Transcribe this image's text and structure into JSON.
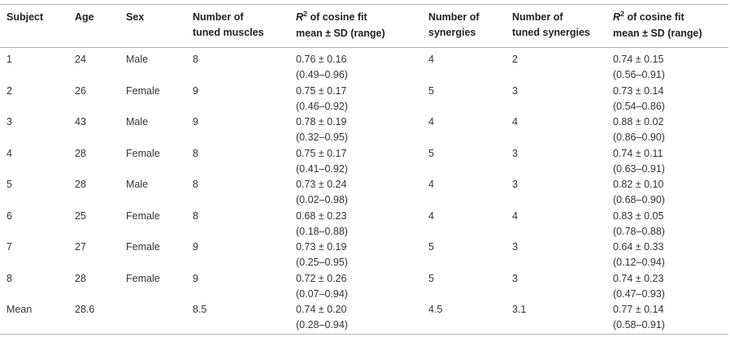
{
  "headers": {
    "subject": "Subject",
    "age": "Age",
    "sex": "Sex",
    "tuned_muscles": [
      "Number of",
      "tuned muscles"
    ],
    "r2_muscles": {
      "symbol": "R",
      "sup": "2",
      "rest": " of cosine fit",
      "line2": "mean ± SD (range)"
    },
    "synergies": [
      "Number of",
      "synergies"
    ],
    "tuned_synergies": [
      "Number of",
      "tuned synergies"
    ],
    "r2_synergies": {
      "symbol": "R",
      "sup": "2",
      "rest": " of cosine fit",
      "line2": "mean ± SD (range)"
    }
  },
  "rows": [
    {
      "subject": "1",
      "age": "24",
      "sex": "Male",
      "tuned_muscles": "8",
      "r2_muscles": "0.76 ± 0.16",
      "r2_muscles_range": "(0.49–0.96)",
      "synergies": "4",
      "tuned_synergies": "2",
      "r2_synergies": "0.74 ± 0.15",
      "r2_synergies_range": "(0.56–0.91)"
    },
    {
      "subject": "2",
      "age": "26",
      "sex": "Female",
      "tuned_muscles": "9",
      "r2_muscles": "0.75 ± 0.17",
      "r2_muscles_range": "(0.46–0.92)",
      "synergies": "5",
      "tuned_synergies": "3",
      "r2_synergies": "0.73 ± 0.14",
      "r2_synergies_range": "(0.54–0.86)"
    },
    {
      "subject": "3",
      "age": "43",
      "sex": "Male",
      "tuned_muscles": "9",
      "r2_muscles": "0.78 ± 0.19",
      "r2_muscles_range": "(0.32–0.95)",
      "synergies": "4",
      "tuned_synergies": "4",
      "r2_synergies": "0.88 ± 0.02",
      "r2_synergies_range": "(0.86–0.90)"
    },
    {
      "subject": "4",
      "age": "28",
      "sex": "Female",
      "tuned_muscles": "8",
      "r2_muscles": "0.75 ± 0.17",
      "r2_muscles_range": "(0.41–0.92)",
      "synergies": "5",
      "tuned_synergies": "3",
      "r2_synergies": "0.74 ± 0.11",
      "r2_synergies_range": "(0.63–0.91)"
    },
    {
      "subject": "5",
      "age": "28",
      "sex": "Male",
      "tuned_muscles": "8",
      "r2_muscles": "0.73 ± 0.24",
      "r2_muscles_range": "(0.02–0.98)",
      "synergies": "4",
      "tuned_synergies": "3",
      "r2_synergies": "0.82 ± 0.10",
      "r2_synergies_range": "(0.68–0.90)"
    },
    {
      "subject": "6",
      "age": "25",
      "sex": "Female",
      "tuned_muscles": "8",
      "r2_muscles": "0.68 ± 0.23",
      "r2_muscles_range": "(0.18–0.88)",
      "synergies": "4",
      "tuned_synergies": "4",
      "r2_synergies": "0.83 ± 0.05",
      "r2_synergies_range": "(0.78–0.88)"
    },
    {
      "subject": "7",
      "age": "27",
      "sex": "Female",
      "tuned_muscles": "9",
      "r2_muscles": "0.73 ± 0.19",
      "r2_muscles_range": "(0.25–0.95)",
      "synergies": "5",
      "tuned_synergies": "3",
      "r2_synergies": "0.64 ± 0.33",
      "r2_synergies_range": "(0.12–0.94)"
    },
    {
      "subject": "8",
      "age": "28",
      "sex": "Female",
      "tuned_muscles": "9",
      "r2_muscles": "0.72 ± 0.26",
      "r2_muscles_range": "(0.07–0.94)",
      "synergies": "5",
      "tuned_synergies": "3",
      "r2_synergies": "0.74 ± 0.23",
      "r2_synergies_range": "(0.47–0.93)"
    },
    {
      "subject": "Mean",
      "age": "28.6",
      "sex": "",
      "tuned_muscles": "8.5",
      "r2_muscles": "0.74 ± 0.20",
      "r2_muscles_range": "(0.28–0.94)",
      "synergies": "4.5",
      "tuned_synergies": "3.1",
      "r2_synergies": "0.77 ± 0.14",
      "r2_synergies_range": "(0.58–0.91)"
    }
  ]
}
